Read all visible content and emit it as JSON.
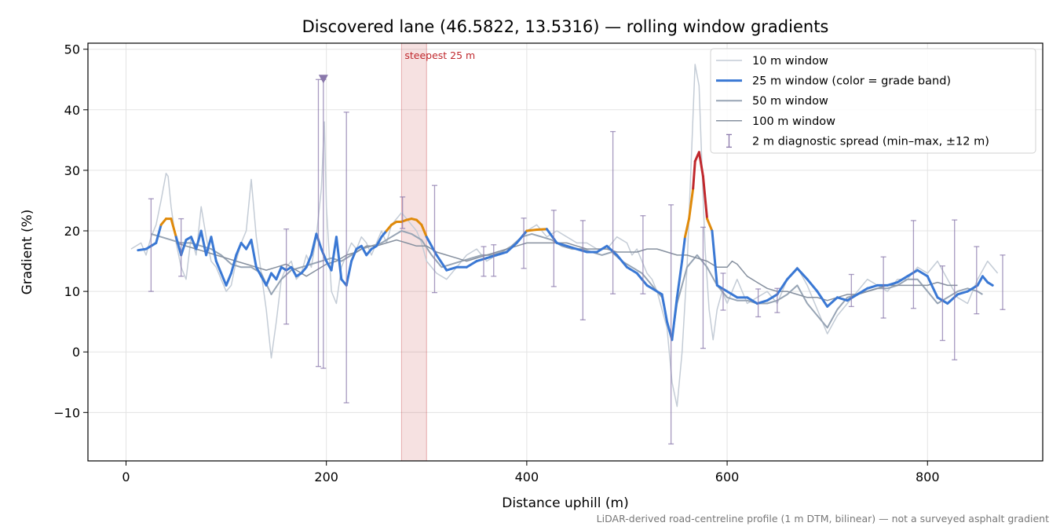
{
  "chart_data": {
    "type": "line",
    "title": "Discovered lane (46.5822, 13.5316) — rolling window gradients",
    "xlabel": "Distance uphill (m)",
    "ylabel": "Gradient (%)",
    "xlim": [
      -38,
      915
    ],
    "ylim": [
      -18,
      51
    ],
    "x_ticks": [
      0,
      200,
      400,
      600,
      800
    ],
    "y_ticks": [
      -10,
      0,
      10,
      20,
      30,
      40,
      50
    ],
    "x_tick_labels": [
      "0",
      "200",
      "400",
      "600",
      "800"
    ],
    "y_tick_labels": [
      "−10",
      "0",
      "10",
      "20",
      "30",
      "40",
      "50"
    ],
    "grid": true,
    "legend_position": "top-right",
    "footnote": "LiDAR-derived road-centreline profile (1 m DTM, bilinear) — not a surveyed asphalt gradient",
    "highlight_band": {
      "label": "steepest 25 m",
      "x_range": [
        275,
        300
      ],
      "color": "#c0282d"
    },
    "marker": {
      "x": 197,
      "y": 45,
      "shape": "triangle-down",
      "color": "#8a78ab"
    },
    "grade_band_colors": {
      "low": "#3a78d4",
      "mid": "#e08a0a",
      "high": "#c0282d"
    },
    "series": [
      {
        "name": "10 m window",
        "color": "#c4ccd6",
        "x": [
          5,
          15,
          20,
          25,
          30,
          35,
          40,
          42,
          45,
          50,
          55,
          60,
          65,
          70,
          75,
          80,
          85,
          90,
          95,
          100,
          105,
          110,
          115,
          120,
          125,
          130,
          135,
          140,
          145,
          150,
          155,
          160,
          165,
          170,
          175,
          180,
          185,
          190,
          195,
          198,
          200,
          205,
          210,
          215,
          220,
          225,
          230,
          235,
          240,
          245,
          250,
          255,
          260,
          265,
          270,
          275,
          280,
          285,
          290,
          295,
          300,
          310,
          320,
          330,
          340,
          350,
          360,
          370,
          380,
          390,
          400,
          410,
          420,
          430,
          440,
          450,
          460,
          470,
          480,
          490,
          500,
          505,
          510,
          515,
          520,
          525,
          530,
          535,
          540,
          545,
          550,
          555,
          560,
          565,
          568,
          572,
          575,
          578,
          582,
          586,
          590,
          595,
          600,
          605,
          610,
          615,
          620,
          630,
          640,
          650,
          660,
          670,
          680,
          690,
          700,
          710,
          720,
          730,
          740,
          750,
          760,
          770,
          780,
          790,
          800,
          810,
          820,
          830,
          840,
          850,
          860,
          870
        ],
        "y": [
          17,
          18,
          16,
          19,
          21,
          25,
          29.5,
          29,
          24,
          18,
          14,
          12,
          19,
          16,
          24,
          19,
          15,
          14,
          12,
          10,
          11,
          15,
          18,
          20,
          28.5,
          19,
          13,
          7,
          -1,
          5,
          12,
          14,
          15,
          12,
          13,
          16,
          14,
          19,
          27,
          38,
          24,
          10,
          8,
          14,
          16,
          18,
          17,
          19,
          18,
          16,
          18,
          20,
          18,
          21,
          22,
          23,
          22,
          21,
          20,
          18,
          15,
          13,
          12,
          14,
          16,
          17,
          15,
          16,
          17,
          18,
          20,
          21,
          19,
          20,
          19,
          18,
          18,
          17,
          17,
          19,
          18,
          16,
          17,
          15,
          13,
          12,
          10,
          7,
          4,
          -5,
          -9,
          0,
          14,
          35,
          47.5,
          44,
          30,
          17,
          7,
          2,
          7,
          10,
          8,
          10,
          12,
          10,
          8,
          9,
          10,
          8,
          12,
          14,
          11,
          7,
          3,
          6,
          8,
          10,
          12,
          11,
          10,
          12,
          12,
          14,
          13,
          15,
          12,
          9,
          8,
          12,
          15,
          13
        ],
        "stroke_width": 1.5
      },
      {
        "name": "25 m window (color = grade band)",
        "color": "#3a78d4",
        "x": [
          12,
          20,
          25,
          30,
          35,
          40,
          45,
          50,
          55,
          60,
          65,
          70,
          75,
          80,
          85,
          90,
          95,
          100,
          105,
          110,
          115,
          120,
          125,
          130,
          135,
          140,
          145,
          150,
          155,
          160,
          165,
          170,
          175,
          180,
          185,
          190,
          195,
          200,
          205,
          210,
          215,
          220,
          225,
          230,
          235,
          240,
          245,
          250,
          255,
          260,
          265,
          270,
          275,
          280,
          285,
          290,
          295,
          300,
          310,
          320,
          330,
          340,
          350,
          360,
          370,
          380,
          390,
          400,
          410,
          420,
          430,
          440,
          450,
          460,
          470,
          480,
          490,
          500,
          510,
          520,
          530,
          535,
          540,
          545,
          550,
          555,
          558,
          562,
          566,
          568,
          572,
          576,
          580,
          585,
          590,
          600,
          610,
          620,
          630,
          640,
          650,
          660,
          670,
          680,
          690,
          700,
          710,
          720,
          730,
          740,
          750,
          760,
          770,
          780,
          790,
          800,
          810,
          820,
          830,
          840,
          850,
          855,
          860,
          865
        ],
        "y": [
          16.8,
          17,
          17.5,
          18,
          21,
          22,
          22,
          19,
          16,
          18.5,
          19,
          17,
          20,
          16,
          19,
          15,
          13,
          11,
          13,
          16,
          18,
          17,
          18.5,
          14,
          12.5,
          11,
          13,
          12,
          14,
          13.5,
          14,
          12.5,
          13,
          14,
          16,
          19.5,
          17,
          15,
          13.5,
          19,
          12,
          11,
          15,
          17,
          17.5,
          16,
          17,
          17.5,
          19,
          20,
          21,
          21.5,
          21.5,
          21.8,
          22,
          21.8,
          21,
          19,
          16,
          13.5,
          14,
          14,
          15,
          15.5,
          16,
          16.5,
          18,
          20,
          20.2,
          20.3,
          18,
          17.5,
          17,
          16.5,
          16.5,
          17.5,
          16,
          14,
          13,
          11,
          10,
          9.5,
          5,
          2,
          9,
          15,
          19,
          22,
          27,
          31.5,
          33,
          29,
          22,
          20,
          11,
          10,
          9,
          9,
          8,
          8.5,
          9.5,
          12,
          13.8,
          12,
          10,
          7.5,
          9,
          8.5,
          9.5,
          10.5,
          11,
          11,
          11.5,
          12.5,
          13.5,
          12.5,
          9,
          8,
          9.5,
          10,
          11,
          12.5,
          11.5,
          11
        ],
        "stroke_width": 3
      },
      {
        "name": "50 m window",
        "color": "#97a4b4",
        "x": [
          25,
          35,
          45,
          55,
          65,
          75,
          85,
          95,
          105,
          115,
          125,
          135,
          145,
          155,
          165,
          175,
          185,
          195,
          205,
          215,
          225,
          235,
          245,
          255,
          265,
          275,
          285,
          295,
          305,
          315,
          325,
          335,
          345,
          355,
          365,
          375,
          385,
          395,
          405,
          415,
          425,
          435,
          445,
          455,
          465,
          475,
          485,
          495,
          505,
          515,
          525,
          535,
          540,
          545,
          550,
          560,
          570,
          580,
          590,
          600,
          610,
          620,
          630,
          640,
          650,
          660,
          670,
          680,
          690,
          700,
          710,
          720,
          730,
          740,
          750,
          760,
          770,
          780,
          790,
          800,
          810,
          820,
          830,
          840,
          850,
          855
        ],
        "y": [
          19.5,
          19,
          18.5,
          18,
          18,
          17.5,
          17,
          16,
          14.5,
          14,
          14,
          13,
          9.5,
          12,
          13.5,
          14,
          14.5,
          15,
          15.5,
          15,
          16,
          17,
          17.5,
          18,
          19,
          20,
          19.5,
          18.5,
          16,
          14,
          14.5,
          15,
          15.5,
          16,
          16,
          16.5,
          17.5,
          19,
          19.5,
          19,
          18.5,
          17.5,
          17,
          17,
          16.5,
          16,
          16.5,
          15,
          14,
          13,
          11,
          9,
          5,
          2,
          8,
          14,
          16,
          14,
          11,
          9,
          8.5,
          8.5,
          8,
          8,
          8.5,
          9.5,
          11,
          8,
          6,
          4,
          7,
          9,
          9.5,
          10,
          10.5,
          10.5,
          11,
          12,
          12,
          10,
          8,
          9,
          10,
          10.5,
          10,
          9.5
        ],
        "stroke_width": 2
      },
      {
        "name": "100 m window",
        "color": "#86909f",
        "x": [
          50,
          60,
          70,
          80,
          90,
          100,
          110,
          120,
          130,
          140,
          150,
          160,
          170,
          180,
          190,
          200,
          210,
          220,
          230,
          240,
          250,
          260,
          270,
          280,
          290,
          300,
          310,
          320,
          330,
          340,
          350,
          360,
          370,
          380,
          390,
          400,
          410,
          420,
          430,
          440,
          450,
          460,
          470,
          480,
          490,
          500,
          510,
          520,
          530,
          540,
          550,
          560,
          570,
          580,
          590,
          600,
          605,
          610,
          620,
          630,
          640,
          650,
          660,
          670,
          680,
          690,
          700,
          710,
          720,
          730,
          740,
          750,
          760,
          770,
          780,
          790,
          800,
          810,
          820,
          830
        ],
        "y": [
          18,
          17.5,
          17,
          16.5,
          16,
          15.5,
          15,
          14.5,
          14,
          13.5,
          14,
          14.5,
          13.5,
          12.5,
          13.5,
          14.5,
          15,
          16,
          16.5,
          17.5,
          17.5,
          18,
          18.5,
          18,
          17.5,
          17.5,
          16.5,
          16,
          15.5,
          15,
          15.5,
          16,
          16.5,
          17,
          17.5,
          18,
          18,
          18,
          18,
          18,
          17.5,
          17,
          17,
          17,
          16.5,
          16.5,
          16.5,
          17,
          17,
          16.5,
          16,
          16,
          15.5,
          15,
          14,
          14,
          15,
          14.5,
          12.5,
          11.5,
          10.5,
          10,
          10,
          9.5,
          9,
          9,
          8.5,
          9,
          9.5,
          9.5,
          10,
          10.5,
          11,
          11,
          11,
          11,
          11,
          11.5,
          11,
          11
        ],
        "stroke_width": 1.5
      }
    ],
    "error_bars": {
      "name": "2 m diagnostic spread (min–max, ±12 m)",
      "color": "#8a78ab",
      "x": [
        25,
        55,
        160,
        192,
        197,
        220,
        276,
        308,
        357,
        367,
        397,
        427,
        456,
        486,
        516,
        544,
        576,
        596,
        631,
        650,
        724,
        756,
        786,
        815,
        827,
        849,
        875
      ],
      "lo": [
        10,
        12.5,
        4.6,
        -2.4,
        -2.7,
        -8.4,
        20.4,
        9.8,
        12.5,
        12.5,
        13.8,
        10.8,
        5.3,
        9.6,
        9.6,
        -15.2,
        0.6,
        6.9,
        5.8,
        6.5,
        7.5,
        5.6,
        7.2,
        1.9,
        -1.3,
        6.3,
        7
      ],
      "hi": [
        25.3,
        22,
        20.3,
        45,
        45,
        39.6,
        25.6,
        27.5,
        17.4,
        17.7,
        22.1,
        23.4,
        21.7,
        36.4,
        22.5,
        24.3,
        20.6,
        13,
        10.4,
        10.5,
        12.8,
        15.7,
        21.7,
        14.2,
        21.8,
        17.4,
        16
      ]
    }
  }
}
